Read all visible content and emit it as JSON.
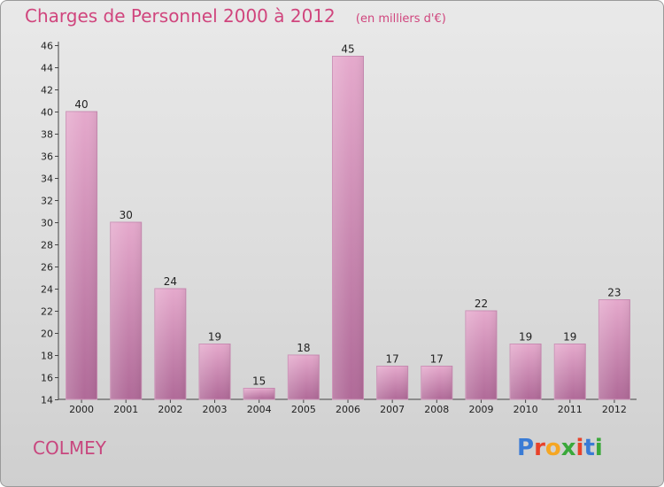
{
  "header": {
    "title": "Charges de Personnel 2000 à 2012",
    "unit": "(en milliers d'€)"
  },
  "footer": {
    "commune": "COLMEY",
    "logo_text": "Proxiti"
  },
  "colors": {
    "title": "#d0457d",
    "bar_top": "#e5a9cc",
    "bar_bottom": "#b06a98",
    "logo_letters": [
      "#3a7bd5",
      "#e8422a",
      "#f5a623",
      "#3aa83a",
      "#e8422a",
      "#3a7bd5",
      "#3aa83a"
    ]
  },
  "chart_data": {
    "type": "bar",
    "categories": [
      "2000",
      "2001",
      "2002",
      "2003",
      "2004",
      "2005",
      "2006",
      "2007",
      "2008",
      "2009",
      "2010",
      "2011",
      "2012"
    ],
    "values": [
      40,
      30,
      24,
      19,
      15,
      18,
      45,
      17,
      17,
      22,
      19,
      19,
      23
    ],
    "ylim": [
      14,
      46
    ],
    "yticks": [
      14,
      16,
      18,
      20,
      22,
      24,
      26,
      28,
      30,
      32,
      34,
      36,
      38,
      40,
      42,
      44,
      46
    ],
    "grid": false,
    "legend": "none"
  }
}
